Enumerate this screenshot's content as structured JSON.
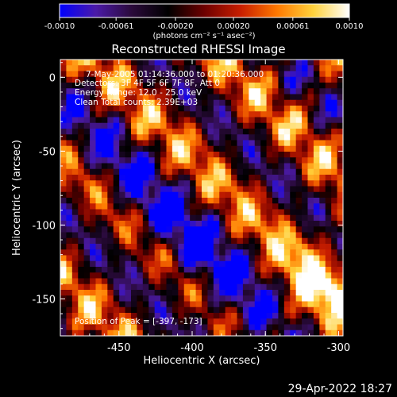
{
  "colorbar": {
    "ticks": [
      "-0.0010",
      "-0.00061",
      "-0.00020",
      "0.00020",
      "0.00061",
      "0.0010"
    ],
    "tick_values": [
      -0.001,
      -0.00061,
      -0.0002,
      0.0002,
      0.00061,
      0.001
    ],
    "range": [
      -0.001,
      0.001
    ],
    "unit_label": "(photons cm⁻² s⁻¹ asec⁻²)",
    "stops": [
      "#0000ff",
      "#4b1aa8",
      "#2a0a3a",
      "#000000",
      "#6e0000",
      "#c81e00",
      "#ff7800",
      "#ffd23c",
      "#ffffff"
    ]
  },
  "chart_data": {
    "type": "heatmap",
    "title": "Reconstructed RHESSI Image",
    "xlabel": "Heliocentric X (arcsec)",
    "ylabel": "Heliocentric Y (arcsec)",
    "xlim": [
      -490,
      -297
    ],
    "ylim": [
      -175,
      12
    ],
    "xticks": [
      -450,
      -400,
      -350,
      -300
    ],
    "yticks": [
      0,
      -50,
      -100,
      -150
    ],
    "annotations": [
      "7-May-2005 01:14:36.000 to 01:20:36.000",
      "Detectors: 3F 4F 5F 6F 7F 8F, Att 0",
      "Energy Range: 12.0 - 25.0 keV",
      "Clean     Total counts: 2.39E+03",
      "Position of Peak = [-397, -173]"
    ],
    "peak": [
      -397,
      -173
    ],
    "intensity_range": [
      -0.001,
      0.001
    ]
  },
  "footer_date": "29-Apr-2022 18:27"
}
